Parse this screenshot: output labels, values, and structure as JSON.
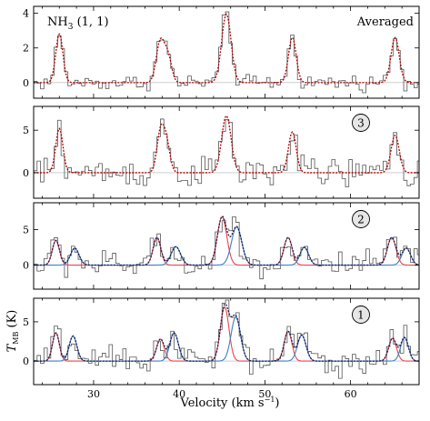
{
  "chart_data": {
    "type": "line",
    "xlabel": "Velocity (km s",
    "xlabel_sup": "−1",
    "xlabel_close": ")",
    "ylabel_main": "T",
    "ylabel_sub": "MB",
    "ylabel_unit": " (K)",
    "xlim": [
      23,
      68
    ],
    "x_ticks": [
      30,
      40,
      50,
      60
    ],
    "minor_x_step": 2,
    "colors": {
      "observed": "#555555",
      "total_fit": "#b20000",
      "component_red": "#e8454f",
      "component_blue": "#3a7fc6",
      "component_sum": "#1a1a4d",
      "badge_fill": "#e6e6e6"
    },
    "panels": [
      {
        "label": "Averaged",
        "title_main": "NH",
        "title_sub": "3",
        "title_rest": " (1, 1)",
        "ylim": [
          -0.9,
          4.4
        ],
        "y_ticks": [
          0,
          2,
          4
        ],
        "noise": 0.22,
        "lines": [
          {
            "v": 26.0,
            "amp": 2.8,
            "sigma": 0.42
          },
          {
            "v": 37.8,
            "amp": 2.4,
            "sigma": 0.48
          },
          {
            "v": 38.7,
            "amp": 1.4,
            "sigma": 0.42
          },
          {
            "v": 45.5,
            "amp": 3.95,
            "sigma": 0.55
          },
          {
            "v": 53.2,
            "amp": 2.6,
            "sigma": 0.45
          },
          {
            "v": 65.2,
            "amp": 2.6,
            "sigma": 0.48
          }
        ],
        "components": []
      },
      {
        "label": "3",
        "ylim": [
          -3.0,
          7.8
        ],
        "y_ticks": [
          0,
          5
        ],
        "noise": 0.9,
        "lines": [
          {
            "v": 26.0,
            "amp": 5.2,
            "sigma": 0.42
          },
          {
            "v": 37.8,
            "amp": 4.6,
            "sigma": 0.42
          },
          {
            "v": 38.5,
            "amp": 3.4,
            "sigma": 0.42
          },
          {
            "v": 45.5,
            "amp": 6.7,
            "sigma": 0.55
          },
          {
            "v": 53.2,
            "amp": 4.8,
            "sigma": 0.45
          },
          {
            "v": 65.2,
            "amp": 4.4,
            "sigma": 0.48
          }
        ],
        "components": []
      },
      {
        "label": "2",
        "ylim": [
          -3.4,
          8.8
        ],
        "y_ticks": [
          0,
          5
        ],
        "noise": 1.0,
        "lines": [
          {
            "v": 25.6,
            "amp": 3.5,
            "sigma": 0.42
          },
          {
            "v": 27.8,
            "amp": 2.4,
            "sigma": 0.5
          },
          {
            "v": 37.4,
            "amp": 3.9,
            "sigma": 0.45
          },
          {
            "v": 39.6,
            "amp": 2.6,
            "sigma": 0.55
          },
          {
            "v": 45.0,
            "amp": 6.8,
            "sigma": 0.55
          },
          {
            "v": 46.7,
            "amp": 5.4,
            "sigma": 0.6
          },
          {
            "v": 52.7,
            "amp": 3.9,
            "sigma": 0.48
          },
          {
            "v": 54.6,
            "amp": 2.5,
            "sigma": 0.5
          },
          {
            "v": 64.8,
            "amp": 3.9,
            "sigma": 0.5
          },
          {
            "v": 66.5,
            "amp": 2.4,
            "sigma": 0.5
          }
        ],
        "components": [
          {
            "color": "red",
            "lines": [
              {
                "v": 25.6,
                "amp": 3.5,
                "sigma": 0.42
              },
              {
                "v": 37.4,
                "amp": 3.9,
                "sigma": 0.45
              },
              {
                "v": 45.0,
                "amp": 6.8,
                "sigma": 0.55
              },
              {
                "v": 52.7,
                "amp": 3.9,
                "sigma": 0.48
              },
              {
                "v": 64.8,
                "amp": 3.9,
                "sigma": 0.5
              }
            ]
          },
          {
            "color": "blue",
            "lines": [
              {
                "v": 27.8,
                "amp": 2.4,
                "sigma": 0.5
              },
              {
                "v": 39.6,
                "amp": 2.6,
                "sigma": 0.55
              },
              {
                "v": 46.7,
                "amp": 5.4,
                "sigma": 0.6
              },
              {
                "v": 54.6,
                "amp": 2.5,
                "sigma": 0.5
              },
              {
                "v": 66.5,
                "amp": 2.4,
                "sigma": 0.5
              }
            ]
          }
        ]
      },
      {
        "label": "1",
        "ylim": [
          -3.0,
          8.0
        ],
        "y_ticks": [
          0,
          5
        ],
        "noise": 0.9,
        "lines": [
          {
            "v": 25.6,
            "amp": 3.6,
            "sigma": 0.4
          },
          {
            "v": 27.6,
            "amp": 3.2,
            "sigma": 0.45
          },
          {
            "v": 37.8,
            "amp": 2.8,
            "sigma": 0.45
          },
          {
            "v": 39.4,
            "amp": 3.6,
            "sigma": 0.5
          },
          {
            "v": 45.3,
            "amp": 6.9,
            "sigma": 0.5
          },
          {
            "v": 46.6,
            "amp": 5.6,
            "sigma": 0.55
          },
          {
            "v": 52.7,
            "amp": 3.8,
            "sigma": 0.45
          },
          {
            "v": 54.3,
            "amp": 3.3,
            "sigma": 0.5
          },
          {
            "v": 64.9,
            "amp": 2.9,
            "sigma": 0.45
          },
          {
            "v": 66.3,
            "amp": 3.0,
            "sigma": 0.45
          }
        ],
        "components": [
          {
            "color": "red",
            "lines": [
              {
                "v": 25.6,
                "amp": 3.6,
                "sigma": 0.4
              },
              {
                "v": 37.8,
                "amp": 2.8,
                "sigma": 0.45
              },
              {
                "v": 45.3,
                "amp": 6.9,
                "sigma": 0.5
              },
              {
                "v": 52.7,
                "amp": 3.8,
                "sigma": 0.45
              },
              {
                "v": 64.9,
                "amp": 2.9,
                "sigma": 0.45
              }
            ]
          },
          {
            "color": "blue",
            "lines": [
              {
                "v": 27.6,
                "amp": 3.2,
                "sigma": 0.45
              },
              {
                "v": 39.4,
                "amp": 3.6,
                "sigma": 0.5
              },
              {
                "v": 46.6,
                "amp": 5.6,
                "sigma": 0.55
              },
              {
                "v": 54.3,
                "amp": 3.3,
                "sigma": 0.5
              },
              {
                "v": 66.3,
                "amp": 3.0,
                "sigma": 0.45
              }
            ]
          }
        ]
      }
    ]
  }
}
